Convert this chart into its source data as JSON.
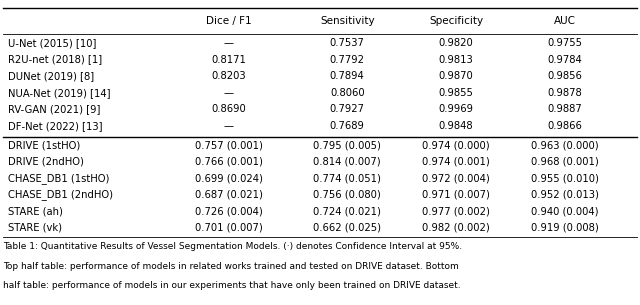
{
  "caption_line1": "Table 1: Quantitative Results of Vessel Segmentation Models. (·) denotes Confidence Interval at 95%.",
  "caption_line2": "Top half table: performance of models in related works trained and tested on DRIVE dataset. Bottom",
  "caption_line3": "half table: performance of models in our experiments that have only been trained on DRIVE dataset.",
  "columns": [
    "",
    "Dice / F1",
    "Sensitivity",
    "Specificity",
    "AUC"
  ],
  "top_rows": [
    [
      "U-Net (2015) [10]",
      "—",
      "0.7537",
      "0.9820",
      "0.9755"
    ],
    [
      "R2U-net (2018) [1]",
      "0.8171",
      "0.7792",
      "0.9813",
      "0.9784"
    ],
    [
      "DUNet (2019) [8]",
      "0.8203",
      "0.7894",
      "0.9870",
      "0.9856"
    ],
    [
      "NUA-Net (2019) [14]",
      "—",
      "0.8060",
      "0.9855",
      "0.9878"
    ],
    [
      "RV-GAN (2021) [9]",
      "0.8690",
      "0.7927",
      "0.9969",
      "0.9887"
    ],
    [
      "DF-Net (2022) [13]",
      "—",
      "0.7689",
      "0.9848",
      "0.9866"
    ]
  ],
  "bottom_rows": [
    [
      "DRIVE (1stHO)",
      "0.757 (0.001)",
      "0.795 (0.005)",
      "0.974 (0.000)",
      "0.963 (0.000)"
    ],
    [
      "DRIVE (2ndHO)",
      "0.766 (0.001)",
      "0.814 (0.007)",
      "0.974 (0.001)",
      "0.968 (0.001)"
    ],
    [
      "CHASE_DB1 (1stHO)",
      "0.699 (0.024)",
      "0.774 (0.051)",
      "0.972 (0.004)",
      "0.955 (0.010)"
    ],
    [
      "CHASE_DB1 (2ndHO)",
      "0.687 (0.021)",
      "0.756 (0.080)",
      "0.971 (0.007)",
      "0.952 (0.013)"
    ],
    [
      "STARE (ah)",
      "0.726 (0.004)",
      "0.724 (0.021)",
      "0.977 (0.002)",
      "0.940 (0.004)"
    ],
    [
      "STARE (vk)",
      "0.701 (0.007)",
      "0.662 (0.025)",
      "0.982 (0.002)",
      "0.919 (0.008)"
    ]
  ],
  "figsize": [
    6.4,
    3.05
  ],
  "dpi": 100,
  "font_size": 7.2,
  "caption_font_size": 6.5
}
